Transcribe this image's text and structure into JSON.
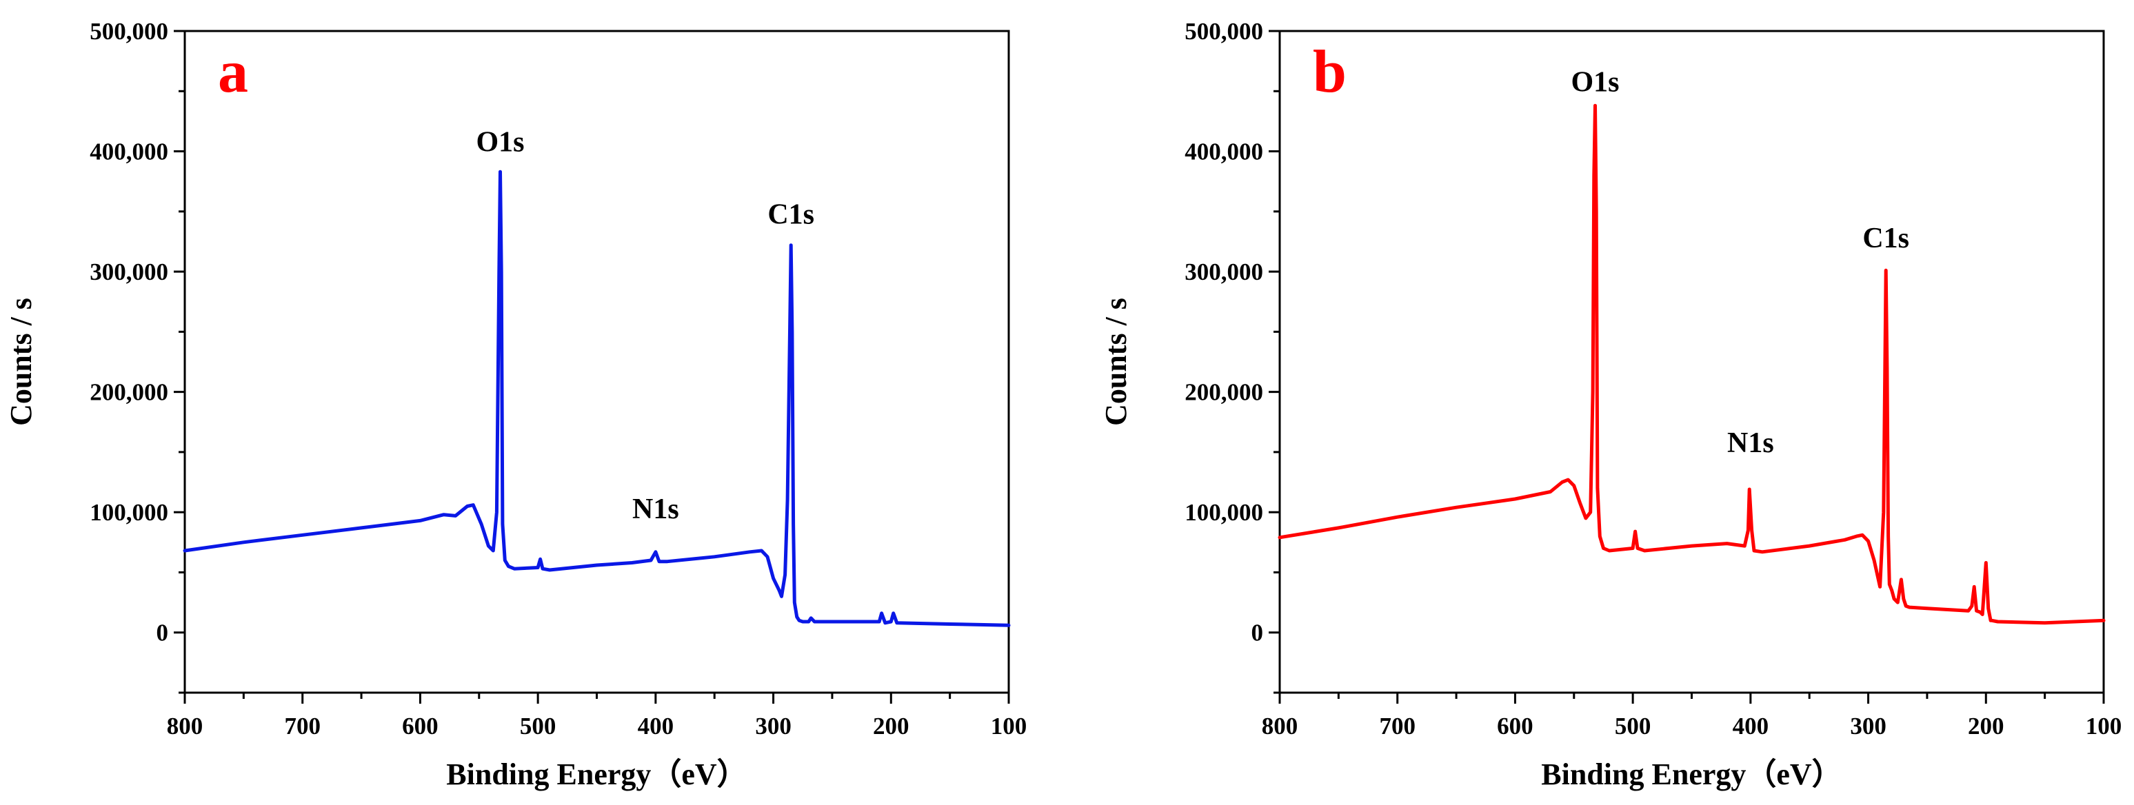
{
  "chart_data": [
    {
      "type": "line",
      "panel_label": "a",
      "xlabel": "Binding Energy（eV）",
      "ylabel": "Counts / s",
      "xlim": [
        800,
        100
      ],
      "ylim": [
        -50000,
        500000
      ],
      "x_ticks": [
        "800",
        "700",
        "600",
        "500",
        "400",
        "300",
        "200",
        "100"
      ],
      "y_ticks": [
        "500,000",
        "400,000",
        "300,000",
        "200,000",
        "100,000",
        "0"
      ],
      "colors": {
        "line": "#0a18e6",
        "panel_label": "#ff0000"
      },
      "annotations": [
        {
          "text": "O1s",
          "x": 532,
          "y": 400000
        },
        {
          "text": "N1s",
          "x": 400,
          "y": 95000
        },
        {
          "text": "C1s",
          "x": 285,
          "y": 340000
        }
      ],
      "series": [
        {
          "name": "a",
          "x": [
            800,
            750,
            700,
            650,
            600,
            580,
            570,
            560,
            555,
            548,
            542,
            538,
            535,
            533,
            532,
            531,
            530,
            528,
            525,
            520,
            500,
            498,
            496,
            490,
            450,
            420,
            404,
            400,
            397,
            390,
            350,
            320,
            310,
            305,
            300,
            295,
            293,
            290,
            288,
            286,
            285,
            284,
            283,
            282,
            280,
            278,
            275,
            270,
            268,
            265,
            250,
            210,
            208,
            205,
            200,
            198,
            195,
            150,
            100
          ],
          "y": [
            68000,
            75000,
            81000,
            87000,
            93000,
            98000,
            97000,
            105000,
            106000,
            90000,
            72000,
            68000,
            100000,
            300000,
            383000,
            300000,
            90000,
            60000,
            55000,
            53000,
            54000,
            61000,
            53000,
            52000,
            56000,
            58000,
            60000,
            67000,
            59000,
            59000,
            63000,
            67000,
            68000,
            63000,
            45000,
            35000,
            30000,
            48000,
            110000,
            250000,
            322000,
            250000,
            90000,
            25000,
            13000,
            10000,
            9000,
            9000,
            12000,
            9000,
            9000,
            9000,
            16000,
            8000,
            9000,
            16000,
            8000,
            7000,
            6000
          ]
        }
      ]
    },
    {
      "type": "line",
      "panel_label": "b",
      "xlabel": "Binding Energy（eV）",
      "ylabel": "Counts / s",
      "xlim": [
        800,
        100
      ],
      "ylim": [
        -50000,
        500000
      ],
      "x_ticks": [
        "800",
        "700",
        "600",
        "500",
        "400",
        "300",
        "200",
        "100"
      ],
      "y_ticks": [
        "500,000",
        "400,000",
        "300,000",
        "200,000",
        "100,000",
        "0"
      ],
      "colors": {
        "line": "#ff0000",
        "panel_label": "#ff0000"
      },
      "annotations": [
        {
          "text": "O1s",
          "x": 532,
          "y": 450000
        },
        {
          "text": "N1s",
          "x": 400,
          "y": 150000
        },
        {
          "text": "C1s",
          "x": 285,
          "y": 320000
        }
      ],
      "series": [
        {
          "name": "b",
          "x": [
            800,
            750,
            700,
            650,
            600,
            570,
            560,
            555,
            550,
            545,
            540,
            536,
            534,
            533,
            532,
            531,
            530,
            528,
            525,
            520,
            500,
            498,
            496,
            490,
            450,
            420,
            405,
            402,
            401,
            399,
            397,
            390,
            350,
            320,
            310,
            305,
            300,
            295,
            290,
            287,
            285,
            284,
            283,
            282,
            280,
            278,
            275,
            272,
            270,
            268,
            265,
            250,
            215,
            212,
            210,
            208,
            205,
            203,
            200,
            198,
            196,
            195,
            190,
            150,
            100
          ],
          "y": [
            79000,
            87000,
            96000,
            104000,
            111000,
            117000,
            125000,
            127000,
            122000,
            108000,
            95000,
            100000,
            200000,
            380000,
            438000,
            350000,
            120000,
            80000,
            70000,
            68000,
            70000,
            84000,
            70000,
            68000,
            72000,
            74000,
            72000,
            85000,
            119000,
            85000,
            68000,
            67000,
            72000,
            77000,
            80000,
            81000,
            76000,
            60000,
            38000,
            100000,
            301000,
            220000,
            80000,
            40000,
            35000,
            28000,
            25000,
            44000,
            28000,
            22000,
            21000,
            20000,
            18000,
            22000,
            38000,
            18000,
            17000,
            15000,
            58000,
            20000,
            10000,
            10000,
            9000,
            8000,
            10000
          ]
        }
      ]
    }
  ]
}
